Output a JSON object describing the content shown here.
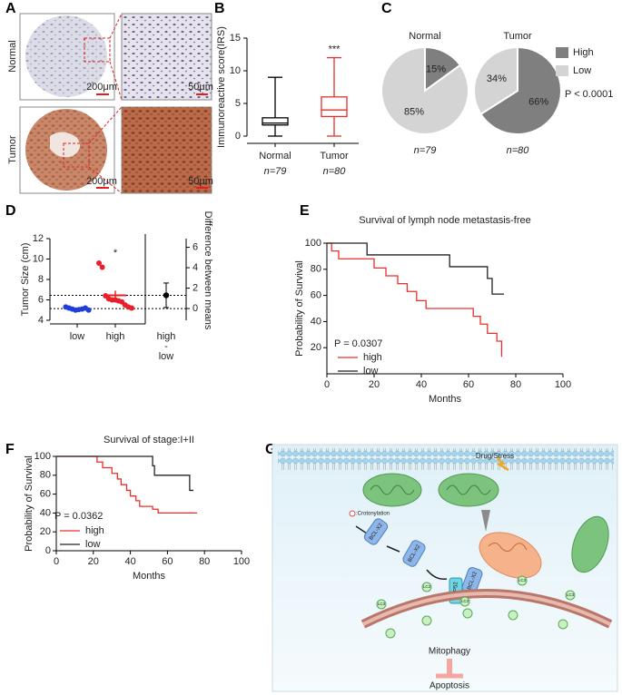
{
  "panel_labels": [
    "A",
    "B",
    "C",
    "D",
    "E",
    "F",
    "G"
  ],
  "panel_a": {
    "row_labels": [
      "Normal",
      "Tumor"
    ],
    "scale_bars": [
      "200μm",
      "50μm",
      "200μm",
      "50μm"
    ]
  },
  "chart_data": [
    {
      "type": "box",
      "y_label": "Immunoreactive score(IRS)",
      "categories": [
        "Normal",
        "Tumor"
      ],
      "sample_sizes": [
        "n=79",
        "n=80"
      ],
      "colors": [
        "#000000",
        "#e8302a"
      ],
      "boxes": [
        {
          "min": 0,
          "q1": 1.7,
          "median": 2,
          "q3": 2.8,
          "max": 9
        },
        {
          "min": 0,
          "q1": 3,
          "median": 4,
          "q3": 6,
          "max": 12
        }
      ],
      "annotation": "***",
      "ylim": [
        0,
        15
      ],
      "yticks": [
        0,
        5,
        10,
        15
      ]
    },
    {
      "type": "pie",
      "categories": [
        "High",
        "Low"
      ],
      "colors": [
        "#7f7f7f",
        "#d4d4d4"
      ],
      "pies": [
        {
          "title": "Normal",
          "values": [
            15,
            85
          ],
          "value_labels": [
            "15%",
            "85%"
          ],
          "sample_size": "n=79"
        },
        {
          "title": "Tumor",
          "values": [
            66,
            34
          ],
          "value_labels": [
            "66%",
            "34%"
          ],
          "sample_size": "n=80"
        }
      ],
      "annotation": "P < 0.0001"
    },
    {
      "type": "estimation",
      "y_label": "Tumor Size (cm)",
      "y2_label": "Difference between means",
      "series": [
        {
          "name": "low",
          "color": "#1f3fd6",
          "values": [
            5.3,
            5.2,
            5.1,
            5.0,
            5.05,
            5.1,
            5.2,
            5.0
          ],
          "mean": 5.15,
          "sem": 0.04
        },
        {
          "name": "high",
          "color": "#e8202a",
          "values": [
            9.6,
            9.2,
            6.4,
            6.1,
            6.0,
            6.0,
            5.9,
            5.8,
            5.5,
            5.3,
            5.2
          ],
          "mean": 6.45,
          "sem": 0.45
        }
      ],
      "difference_label": [
        "high",
        "-",
        "low"
      ],
      "difference": {
        "value": 1.3,
        "ci": [
          0.1,
          2.5
        ]
      },
      "annotation": "*",
      "ylim": [
        4,
        12
      ],
      "yticks": [
        4,
        6,
        8,
        10,
        12
      ],
      "y2lim": [
        -1.15,
        6.85
      ],
      "y2ticks": [
        0,
        2,
        4,
        6
      ]
    },
    {
      "type": "survival",
      "title": "Survival of lymph node metastasis-free",
      "x_label": "Months",
      "y_label": "Probability of Survival",
      "annotation": "P = 0.0307",
      "series": [
        {
          "name": "high",
          "color": "#e8302a",
          "x": [
            0,
            2,
            5,
            20,
            25,
            30,
            34,
            38,
            42,
            50,
            62,
            65,
            68,
            72,
            74
          ],
          "values": [
            100,
            94,
            88,
            81,
            75,
            69,
            63,
            56,
            50,
            50,
            44,
            38,
            31,
            25,
            13
          ]
        },
        {
          "name": "low",
          "color": "#222222",
          "x": [
            0,
            17,
            52,
            68,
            70,
            75
          ],
          "values": [
            100,
            91,
            82,
            73,
            61,
            61
          ]
        }
      ],
      "xlim": [
        0,
        100
      ],
      "xticks": [
        0,
        20,
        40,
        60,
        80,
        100
      ],
      "ylim": [
        0,
        100
      ],
      "yticks": [
        20,
        40,
        60,
        80,
        100
      ]
    },
    {
      "type": "survival",
      "title": "Survival of stage:I+II",
      "x_label": "Months",
      "y_label": "Probability of Survival",
      "annotation": "P = 0.0362",
      "series": [
        {
          "name": "high",
          "color": "#e8302a",
          "x": [
            0,
            22,
            25,
            30,
            33,
            35,
            38,
            40,
            43,
            45,
            50,
            52,
            55,
            76
          ],
          "values": [
            100,
            94,
            88,
            82,
            76,
            70,
            64,
            58,
            53,
            47,
            47,
            44,
            40,
            40
          ]
        },
        {
          "name": "low",
          "color": "#222222",
          "x": [
            0,
            52,
            53,
            72,
            74
          ],
          "values": [
            100,
            90,
            80,
            64,
            64
          ]
        }
      ],
      "xlim": [
        0,
        100
      ],
      "xticks": [
        0,
        20,
        40,
        60,
        80,
        100
      ],
      "ylim": [
        0,
        100
      ],
      "yticks": [
        0,
        20,
        40,
        60,
        80,
        100
      ]
    }
  ],
  "diagram": {
    "stimulus": "Drug/Stress",
    "modification": ":Crotonylation",
    "proteins": [
      "BCL-X2",
      "BCL-X2",
      "NDP52",
      "BCL-X2"
    ],
    "markers": [
      "LC3",
      "LC3",
      "LC3",
      "LC3",
      "LC3"
    ],
    "process": "Mitophagy",
    "outcome": "Apoptosis"
  }
}
